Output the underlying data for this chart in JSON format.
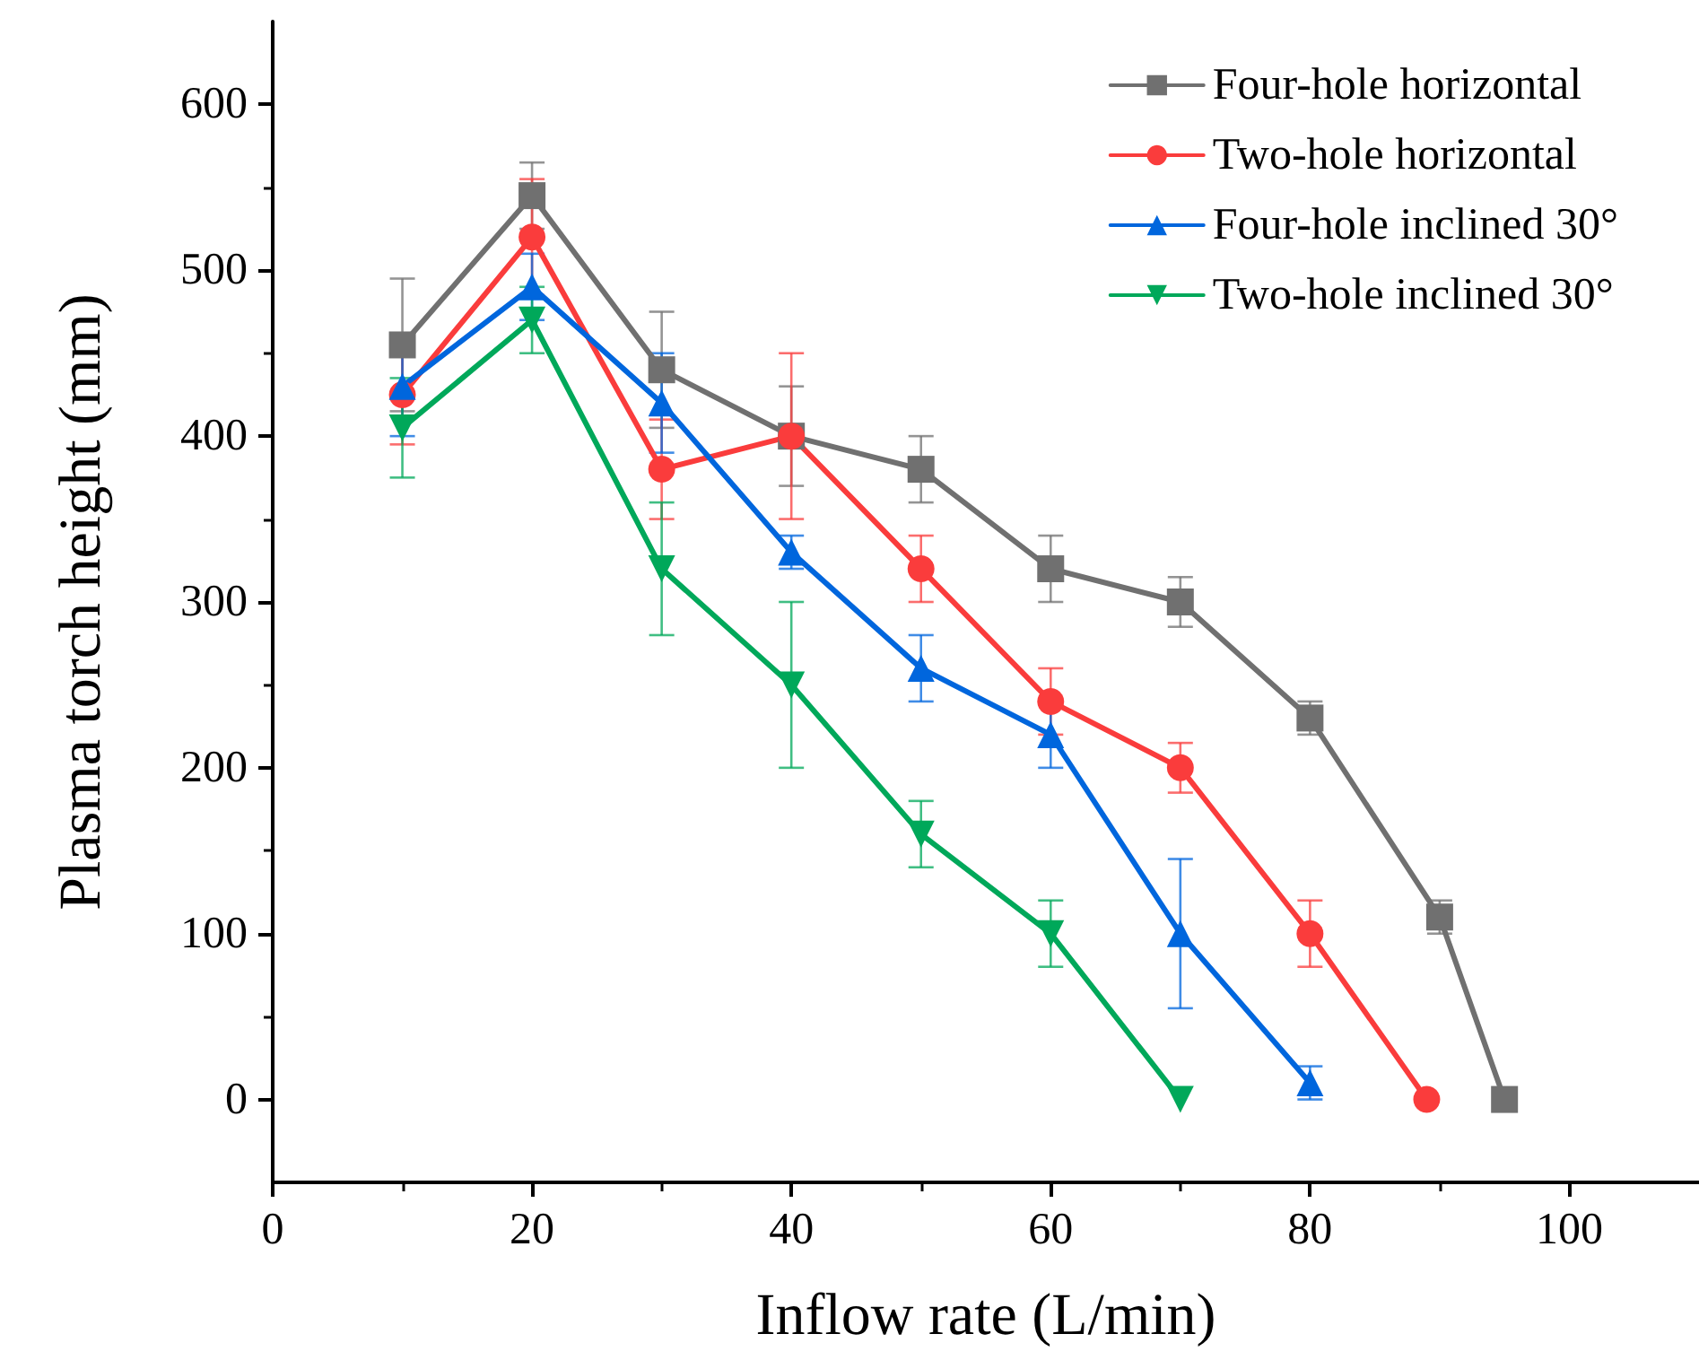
{
  "chart_data": {
    "type": "line",
    "xlabel": "Inflow rate (L/min)",
    "ylabel": "Plasma torch height (mm)",
    "xlim": [
      0,
      110
    ],
    "xticks": [
      0,
      20,
      40,
      60,
      80,
      100
    ],
    "ylim": [
      -50,
      650
    ],
    "yticks": [
      0,
      100,
      200,
      300,
      400,
      500,
      600
    ],
    "grid": false,
    "legend": "top right",
    "series": [
      {
        "name": "Four-hole horizontal",
        "color": "#707070",
        "marker": "square",
        "x": [
          10,
          20,
          30,
          40,
          50,
          60,
          70,
          80,
          90,
          95
        ],
        "values": [
          455,
          545,
          440,
          400,
          380,
          320,
          300,
          230,
          110,
          0
        ],
        "errors": [
          40,
          20,
          35,
          30,
          20,
          20,
          15,
          10,
          10,
          null
        ]
      },
      {
        "name": "Two-hole horizontal",
        "color": "#fa3c3c",
        "marker": "circle",
        "x": [
          10,
          20,
          30,
          40,
          50,
          60,
          70,
          80,
          89
        ],
        "values": [
          425,
          520,
          380,
          400,
          320,
          240,
          200,
          100,
          0
        ],
        "errors": [
          30,
          35,
          30,
          50,
          20,
          20,
          15,
          20,
          null
        ]
      },
      {
        "name": "Four-hole inclined 30°",
        "color": "#0066dd",
        "marker": "triangle",
        "x": [
          10,
          20,
          30,
          40,
          50,
          60,
          70,
          80
        ],
        "values": [
          430,
          490,
          420,
          330,
          260,
          220,
          100,
          10
        ],
        "errors": [
          30,
          20,
          30,
          10,
          20,
          20,
          45,
          10
        ]
      },
      {
        "name": "Two-hole inclined 30°",
        "color": "#00a85a",
        "marker": "triangle-down",
        "x": [
          10,
          20,
          30,
          40,
          50,
          60,
          70
        ],
        "values": [
          405,
          470,
          320,
          250,
          160,
          100,
          0
        ],
        "errors": [
          30,
          20,
          40,
          50,
          20,
          20,
          null
        ]
      }
    ]
  }
}
